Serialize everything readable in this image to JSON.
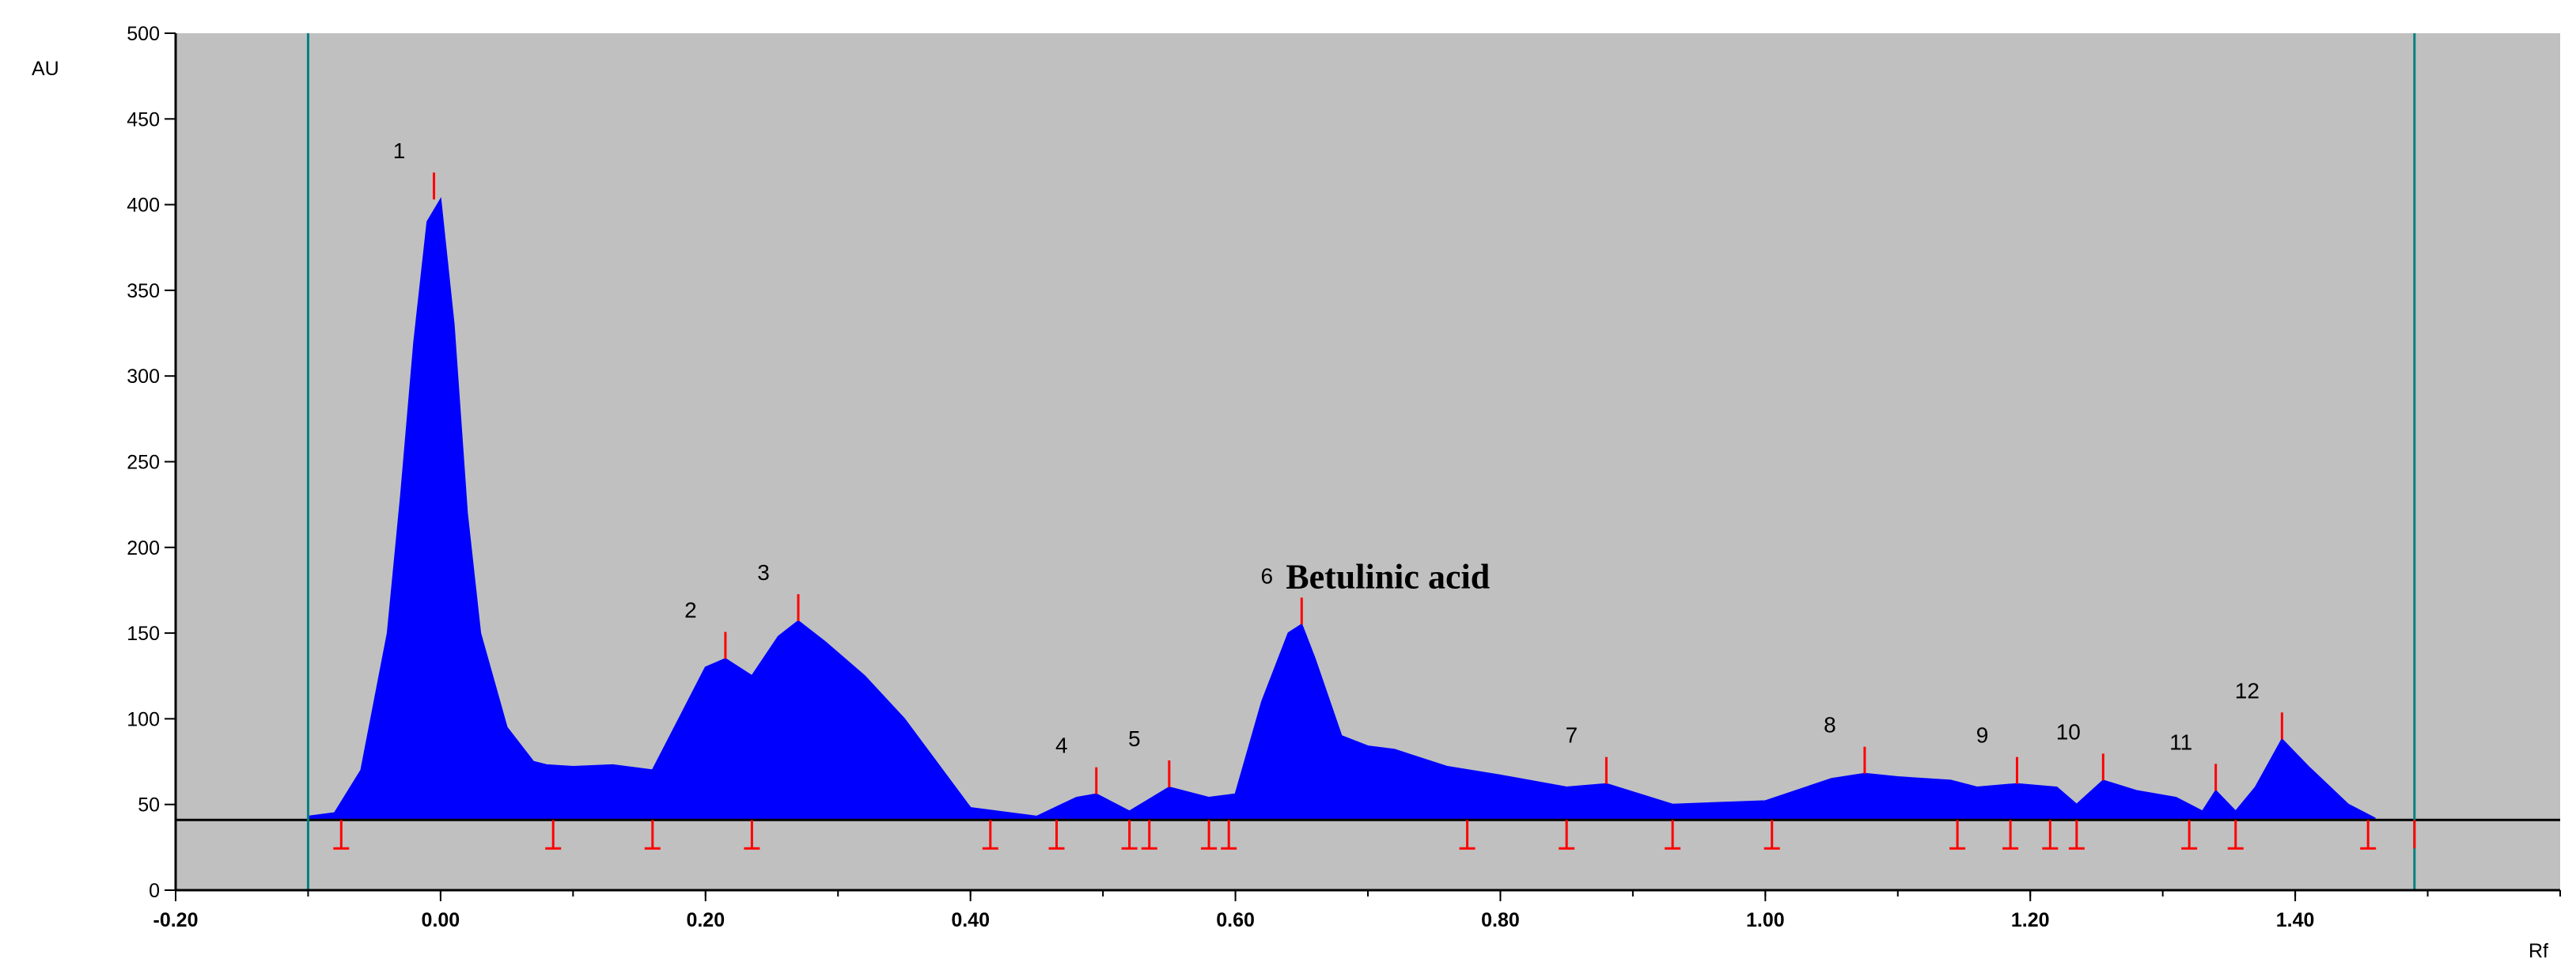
{
  "chart_data": {
    "type": "area",
    "title": "",
    "xlabel": "Rf",
    "ylabel": "AU",
    "xlim": [
      -0.2,
      1.6
    ],
    "ylim": [
      0,
      500
    ],
    "x_ticks": [
      "-0.20",
      "0.00",
      "0.20",
      "0.40",
      "0.60",
      "0.80",
      "1.00",
      "1.20",
      "1.40"
    ],
    "y_ticks": [
      "0",
      "50",
      "100",
      "150",
      "200",
      "250",
      "300",
      "350",
      "400",
      "450",
      "500"
    ],
    "grid": false,
    "baseline_au": 41,
    "start_rf": -0.1,
    "end_rf": 1.49,
    "colors": {
      "plot_bg": "#c0c0c0",
      "fill": "#0000ff",
      "markers": "#ff0000",
      "bounds": "#008080"
    },
    "series": [
      {
        "x": [
          -0.1,
          -0.08,
          -0.06,
          -0.04,
          -0.03,
          -0.02,
          -0.01,
          0.0,
          0.01,
          0.02,
          0.03,
          0.05,
          0.07,
          0.08,
          0.1,
          0.13,
          0.16,
          0.18,
          0.2,
          0.215,
          0.235,
          0.255,
          0.27,
          0.29,
          0.32,
          0.35,
          0.4,
          0.45,
          0.48,
          0.495,
          0.52,
          0.55,
          0.58,
          0.6,
          0.62,
          0.64,
          0.65,
          0.66,
          0.68,
          0.7,
          0.72,
          0.76,
          0.8,
          0.85,
          0.88,
          0.93,
          1.0,
          1.05,
          1.075,
          1.1,
          1.14,
          1.16,
          1.19,
          1.22,
          1.235,
          1.255,
          1.28,
          1.31,
          1.33,
          1.34,
          1.355,
          1.37,
          1.39,
          1.41,
          1.44,
          1.46
        ],
        "y": [
          43,
          45,
          70,
          150,
          230,
          320,
          390,
          403,
          330,
          220,
          150,
          95,
          75,
          73,
          72,
          73,
          70,
          100,
          130,
          135,
          125,
          148,
          157,
          145,
          125,
          100,
          48,
          43,
          54,
          56,
          46,
          60,
          54,
          56,
          110,
          150,
          155,
          135,
          90,
          84,
          82,
          72,
          67,
          60,
          62,
          50,
          52,
          65,
          68,
          66,
          64,
          60,
          62,
          60,
          50,
          64,
          58,
          54,
          46,
          58,
          46,
          60,
          88,
          72,
          50,
          42
        ]
      }
    ],
    "peaks": [
      {
        "label": "1",
        "rf": -0.005,
        "au": 403
      },
      {
        "label": "2",
        "rf": 0.215,
        "au": 135
      },
      {
        "label": "3",
        "rf": 0.27,
        "au": 157
      },
      {
        "label": "4",
        "rf": 0.495,
        "au": 56
      },
      {
        "label": "5",
        "rf": 0.55,
        "au": 60
      },
      {
        "label": "6",
        "rf": 0.65,
        "au": 155
      },
      {
        "label": "7",
        "rf": 0.88,
        "au": 62
      },
      {
        "label": "8",
        "rf": 1.075,
        "au": 68
      },
      {
        "label": "9",
        "rf": 1.19,
        "au": 62
      },
      {
        "label": "10",
        "rf": 1.255,
        "au": 64
      },
      {
        "label": "11",
        "rf": 1.34,
        "au": 58
      },
      {
        "label": "12",
        "rf": 1.39,
        "au": 88
      }
    ],
    "peak_bounds": [
      -0.075,
      0.085,
      0.16,
      0.235,
      0.415,
      0.465,
      0.52,
      0.535,
      0.58,
      0.595,
      0.775,
      0.85,
      0.93,
      1.005,
      1.145,
      1.185,
      1.215,
      1.235,
      1.32,
      1.355,
      1.455
    ],
    "annotation": {
      "text": "Betulinic acid",
      "peak": "6"
    }
  }
}
